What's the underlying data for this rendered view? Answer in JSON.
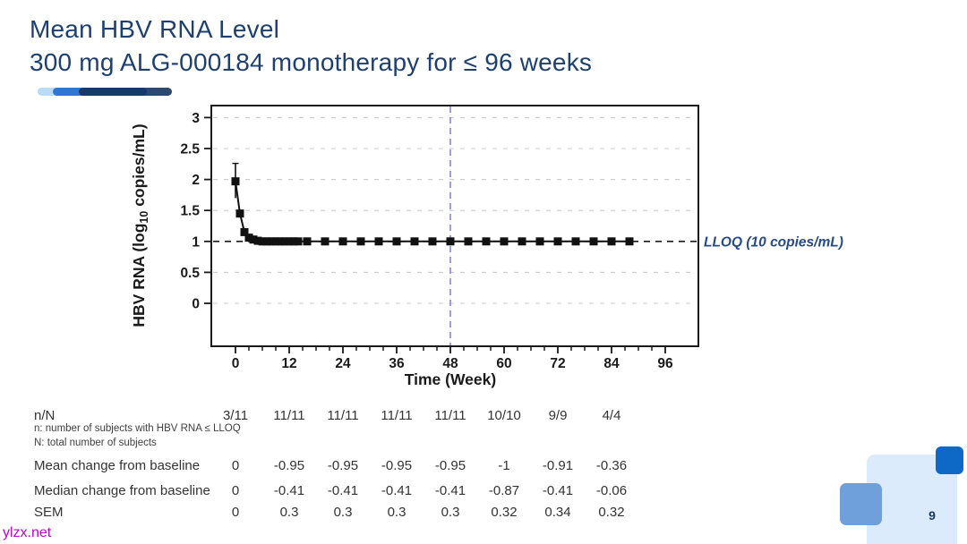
{
  "slide": {
    "title_line1": "Mean HBV RNA Level",
    "title_line2": "300 mg ALG-000184 monotherapy for ≤ 96 weeks",
    "page_number": "9",
    "watermark": "ylzx.net"
  },
  "colors": {
    "title_blue": "#1e4070",
    "lloq_blue": "#274b85",
    "axis_black": "#1a1a1a",
    "series_black": "#111111",
    "grid_gray": "#cbcbcb",
    "vline_purple": "#8a8af0",
    "table_text": "#333333",
    "deco_bar": [
      "#b9dbf7",
      "#2e77d2",
      "#16396a",
      "#2a4a70"
    ],
    "deco_pale": "#dcebfb",
    "deco_mid": "#6fa0d9",
    "deco_dark": "#0e68c6",
    "watermark_magenta": "#c000c8"
  },
  "chart_data": {
    "type": "line",
    "title": "Mean HBV RNA Level",
    "xlabel": "Time (Week)",
    "ylabel": "HBV RNA (log10 copies/mL)",
    "ylabel_parts": {
      "pre": "HBV  RNA  (log",
      "sub": "10",
      "post": "  copies/mL)"
    },
    "xlim": [
      -5,
      103
    ],
    "ylim": [
      -0.69,
      3.19
    ],
    "x_ticks": [
      0,
      12,
      24,
      36,
      48,
      60,
      72,
      84,
      96
    ],
    "x_minor_step": 3,
    "y_ticks": [
      0,
      0.5,
      1,
      1.5,
      2,
      2.5,
      3
    ],
    "y_tick_labels": [
      "0",
      "0.5",
      "1",
      "1.5",
      "2",
      "2.5",
      "3"
    ],
    "grid": "dashed-horizontal",
    "legend_position": "none",
    "series": [
      {
        "name": "Mean HBV RNA",
        "marker": "square",
        "x": [
          0,
          1,
          2,
          3,
          4,
          5,
          6,
          7,
          8,
          9,
          10,
          11,
          12,
          13,
          14,
          16,
          20,
          24,
          28,
          32,
          36,
          40,
          44,
          48,
          52,
          56,
          60,
          64,
          68,
          72,
          76,
          80,
          84,
          88
        ],
        "y": [
          1.97,
          1.45,
          1.15,
          1.06,
          1.03,
          1.01,
          1.0,
          1.0,
          1.0,
          1.0,
          1.0,
          1.0,
          1.0,
          1.0,
          1.0,
          1.0,
          1.0,
          1.0,
          1.0,
          1.0,
          1.0,
          1.0,
          1.0,
          1.0,
          1.0,
          1.0,
          1.0,
          1.0,
          1.0,
          1.0,
          1.0,
          1.0,
          1.0,
          1.0
        ]
      }
    ],
    "error_bars": [
      {
        "x": 0,
        "low": 1.7,
        "high": 2.26
      }
    ],
    "reference_lines": {
      "h": {
        "y": 1,
        "label": "LLOQ (10 copies/mL)",
        "style": "dashed"
      },
      "v": {
        "x": 48,
        "style": "dashed"
      }
    }
  },
  "table": {
    "col_weeks": [
      0,
      12,
      24,
      36,
      48,
      60,
      72,
      84
    ],
    "nN": {
      "label": "n/N",
      "values": [
        "3/11",
        "11/11",
        "11/11",
        "11/11",
        "11/11",
        "10/10",
        "9/9",
        "4/4"
      ]
    },
    "footnote1": "n: number of subjects with HBV RNA ≤ LLOQ",
    "footnote2": "N: total number of subjects",
    "rows": [
      {
        "label": "Mean change from baseline",
        "values": [
          "0",
          "-0.95",
          "-0.95",
          "-0.95",
          "-0.95",
          "-1",
          "-0.91",
          "-0.36"
        ]
      },
      {
        "label": "Median change from baseline",
        "values": [
          "0",
          "-0.41",
          "-0.41",
          "-0.41",
          "-0.41",
          "-0.87",
          "-0.41",
          "-0.06"
        ]
      },
      {
        "label": "SEM",
        "values": [
          "0",
          "0.3",
          "0.3",
          "0.3",
          "0.3",
          "0.32",
          "0.34",
          "0.32"
        ]
      }
    ]
  }
}
